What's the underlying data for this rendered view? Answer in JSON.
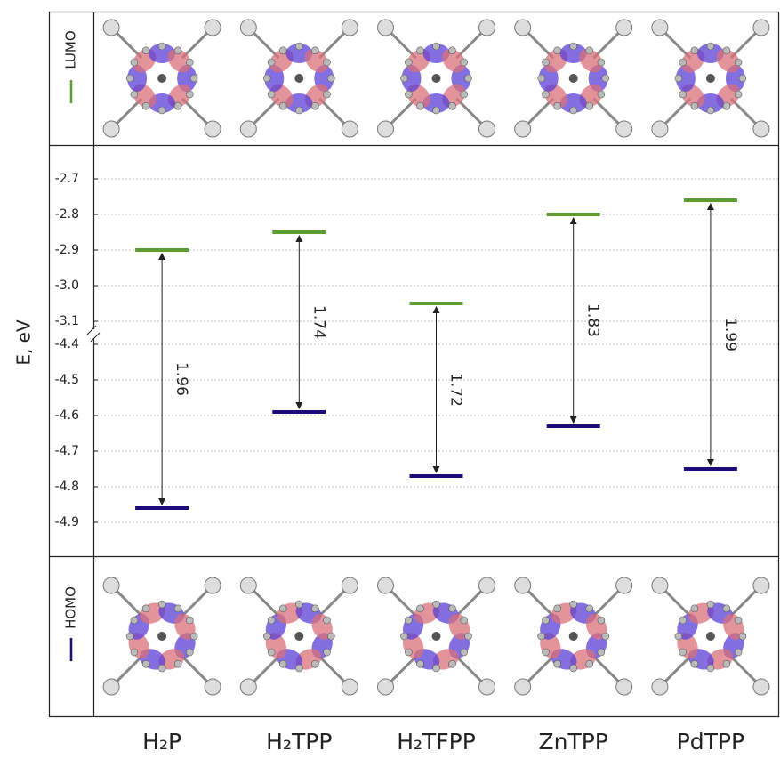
{
  "chart_data": {
    "type": "energy-levels",
    "y_label": "E, eV",
    "categories": [
      "H₂P",
      "H₂TPP",
      "H₂TFPP",
      "ZnTPP",
      "PdTPP"
    ],
    "series": [
      {
        "name": "LUMO",
        "color": "#5a9e32",
        "values": [
          -2.9,
          -2.85,
          -3.05,
          -2.8,
          -2.76
        ]
      },
      {
        "name": "HOMO",
        "color": "#1c0b78",
        "values": [
          -4.86,
          -4.59,
          -4.77,
          -4.63,
          -4.75
        ]
      }
    ],
    "gaps": {
      "values": [
        1.96,
        1.74,
        1.72,
        1.83,
        1.99
      ]
    },
    "axis_segments": [
      {
        "ylim": [
          -3.135,
          -2.605
        ],
        "yticks": [
          -2.7,
          -2.8,
          -2.9,
          {
            "value": -3,
            "label": "-3.0"
          },
          -3.1
        ]
      },
      {
        "ylim": [
          -4.995,
          -4.37
        ],
        "yticks": [
          -4.4,
          -4.5,
          -4.6,
          -4.7,
          -4.8,
          -4.9
        ]
      }
    ],
    "grid": true
  }
}
